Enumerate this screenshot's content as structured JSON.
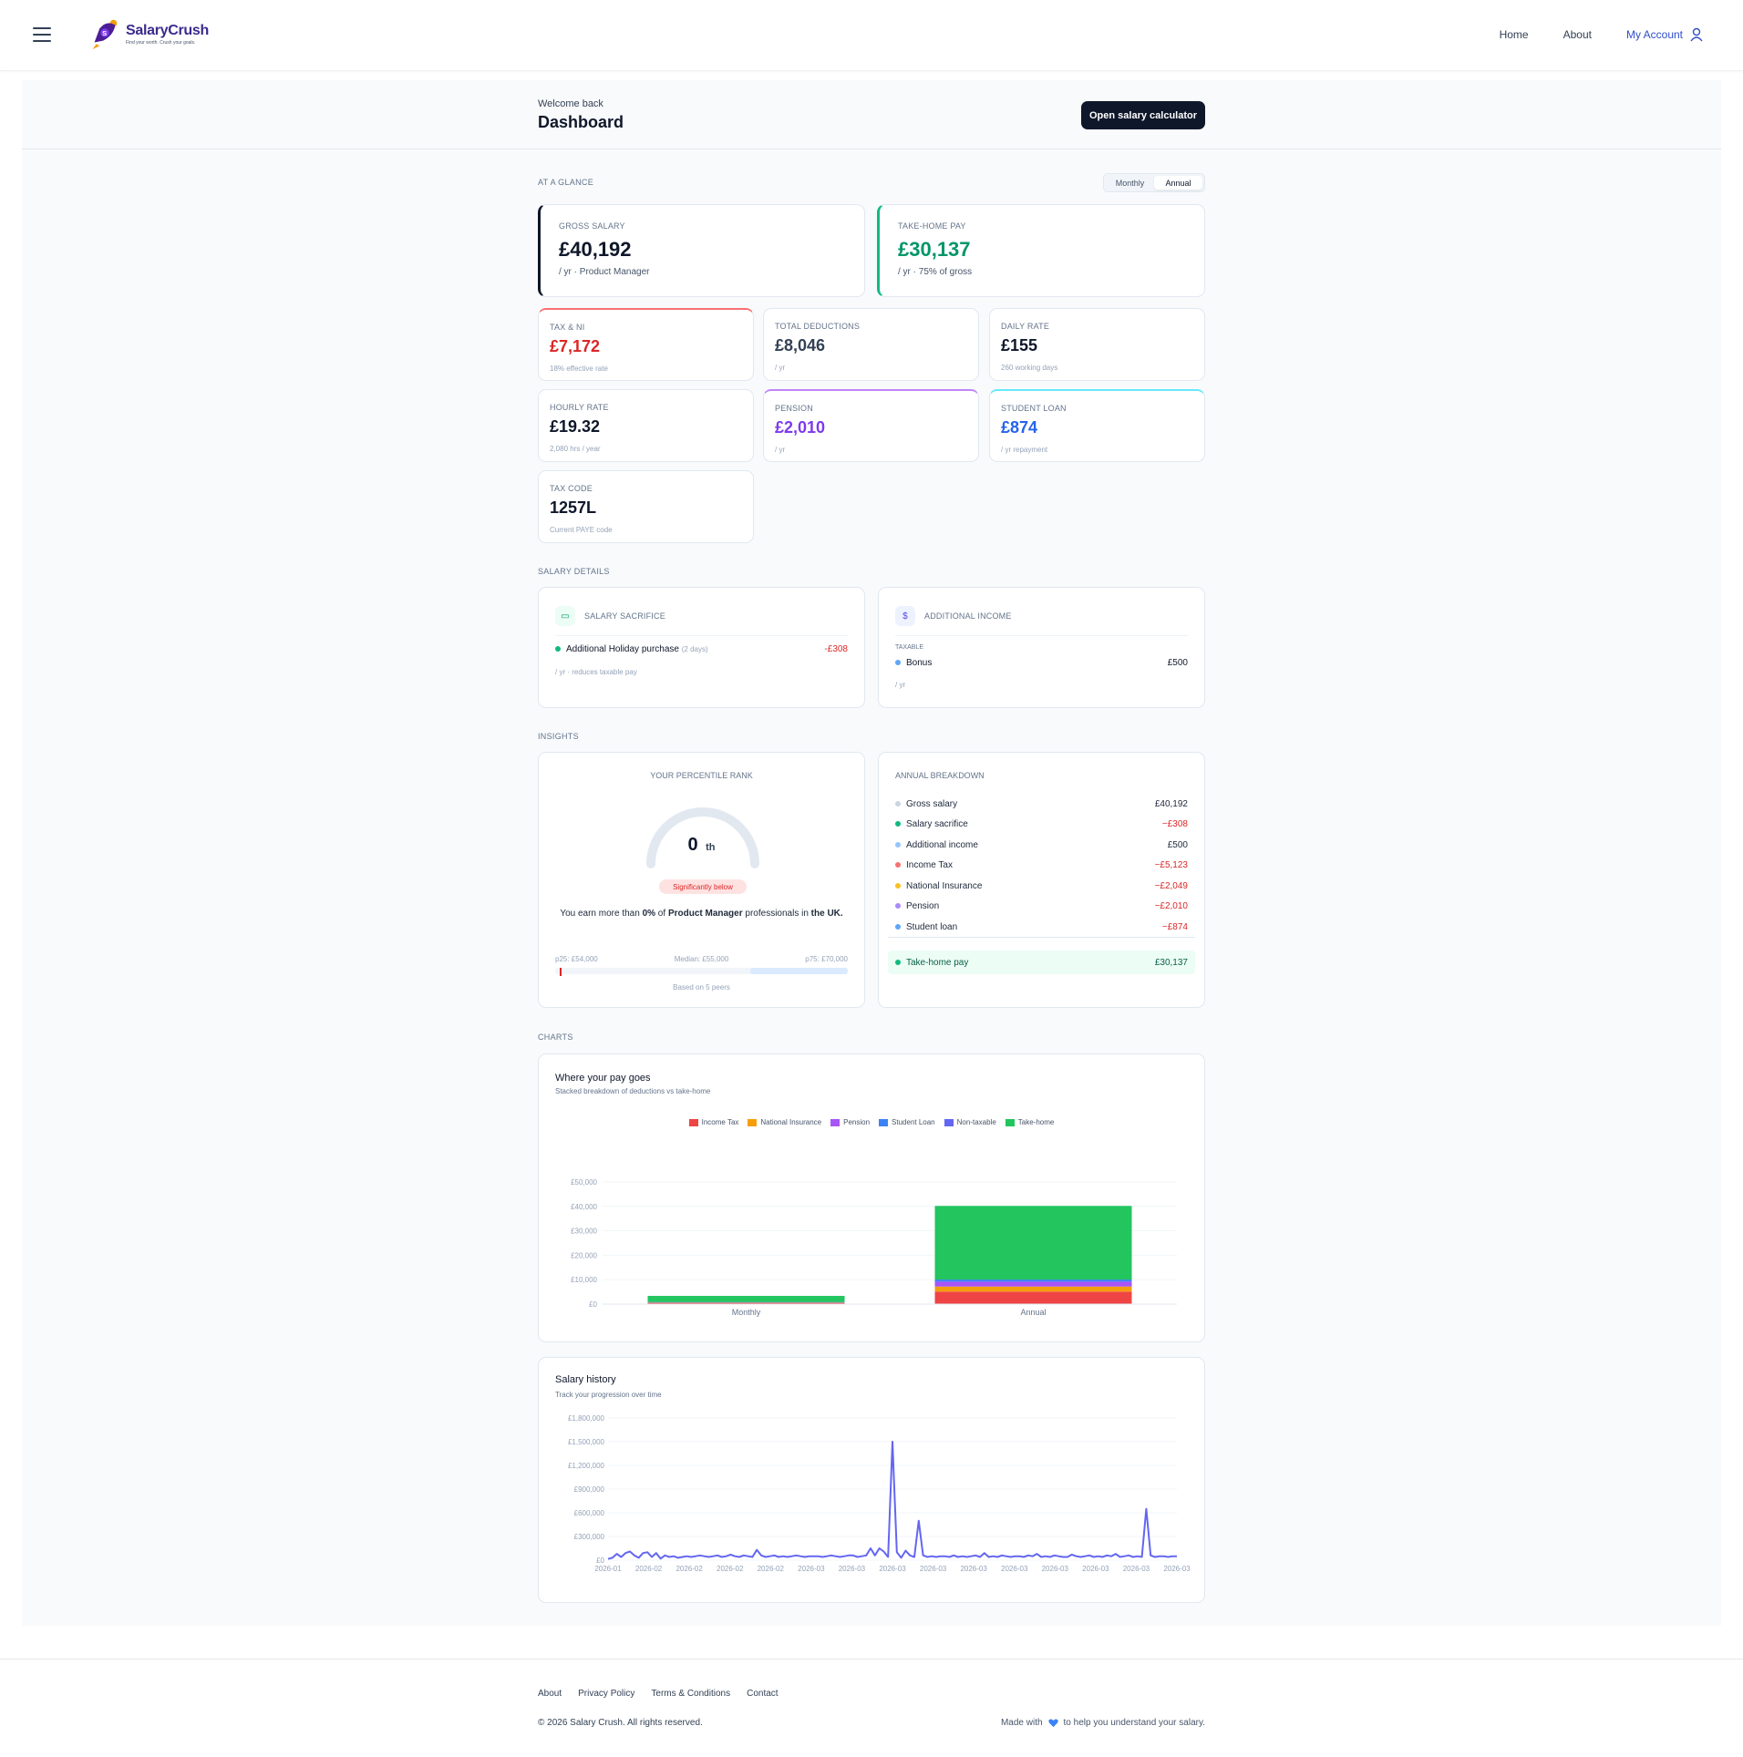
{
  "header": {
    "logo_name": "SalaryCrush",
    "logo_tagline": "Find your worth. Crush your goals.",
    "nav": {
      "home": "Home",
      "about": "About",
      "account": "My Account"
    }
  },
  "page": {
    "welcome": "Welcome back",
    "title": "Dashboard",
    "calc_button": "Open salary calculator"
  },
  "glance": {
    "section": "AT A GLANCE",
    "toggle": {
      "monthly": "Monthly",
      "annual": "Annual",
      "selected": "Annual"
    },
    "gross": {
      "label": "GROSS SALARY",
      "value": "£40,192",
      "sub": "/ yr · Product Manager"
    },
    "takehome": {
      "label": "TAKE-HOME PAY",
      "value": "£30,137",
      "sub": "/ yr · 75% of gross"
    },
    "tax_ni": {
      "label": "TAX & NI",
      "value": "£7,172",
      "sub": "18% effective rate"
    },
    "deductions": {
      "label": "TOTAL DEDUCTIONS",
      "value": "£8,046",
      "sub": "/ yr"
    },
    "daily": {
      "label": "DAILY RATE",
      "value": "£155",
      "sub": "260 working days"
    },
    "hourly": {
      "label": "HOURLY RATE",
      "value": "£19.32",
      "sub": "2,080 hrs / year"
    },
    "pension": {
      "label": "PENSION",
      "value": "£2,010",
      "sub": "/ yr"
    },
    "student_loan": {
      "label": "STUDENT LOAN",
      "value": "£874",
      "sub": "/ yr repayment"
    },
    "tax_code": {
      "label": "TAX CODE",
      "value": "1257L",
      "sub": "Current PAYE code"
    }
  },
  "details": {
    "section": "SALARY DETAILS",
    "sacrifice": {
      "title": "SALARY SACRIFICE",
      "item": "Additional Holiday purchase",
      "item_note": "(2 days)",
      "item_amount": "-£308",
      "footnote": "/ yr · reduces taxable pay"
    },
    "additional": {
      "title": "ADDITIONAL INCOME",
      "group": "TAXABLE",
      "item": "Bonus",
      "item_amount": "£500",
      "footnote": "/ yr"
    }
  },
  "insights": {
    "section": "INSIGHTS",
    "percentile": {
      "title": "YOUR PERCENTILE RANK",
      "value": "0",
      "suffix": "th",
      "badge": "Significantly below",
      "text_a": "You earn more than ",
      "text_pct": "0%",
      "text_b": " of ",
      "text_role": "Product Manager",
      "text_c": " professionals in ",
      "text_loc": "the UK.",
      "p25": "p25: £54,000",
      "median": "Median: £55,000",
      "p75": "p75: £70,000",
      "peers": "Based on 5 peers",
      "gauge_fraction": 0.0
    },
    "breakdown": {
      "title": "ANNUAL BREAKDOWN",
      "rows": [
        {
          "label": "Gross salary",
          "amount": "£40,192",
          "color": "#cbd5e1",
          "neg": false
        },
        {
          "label": "Salary sacrifice",
          "amount": "−£308",
          "color": "#10b981",
          "neg": true
        },
        {
          "label": "Additional income",
          "amount": "£500",
          "color": "#93c5fd",
          "neg": false
        },
        {
          "label": "Income Tax",
          "amount": "−£5,123",
          "color": "#f87171",
          "neg": true
        },
        {
          "label": "National Insurance",
          "amount": "−£2,049",
          "color": "#fbbf24",
          "neg": true
        },
        {
          "label": "Pension",
          "amount": "−£2,010",
          "color": "#a78bfa",
          "neg": true
        },
        {
          "label": "Student loan",
          "amount": "−£874",
          "color": "#60a5fa",
          "neg": true
        }
      ],
      "total_label": "Take-home pay",
      "total_amount": "£30,137"
    }
  },
  "charts_section": "CHARTS",
  "chart_data": [
    {
      "type": "bar",
      "stacked": true,
      "title": "Where your pay goes",
      "subtitle": "Stacked breakdown of deductions vs take-home",
      "categories": [
        "Monthly",
        "Annual"
      ],
      "series": [
        {
          "name": "Income Tax",
          "color": "#ef4444",
          "values": [
            427,
            5123
          ]
        },
        {
          "name": "National Insurance",
          "color": "#f59e0b",
          "values": [
            171,
            2049
          ]
        },
        {
          "name": "Pension",
          "color": "#a855f7",
          "values": [
            168,
            2010
          ]
        },
        {
          "name": "Student Loan",
          "color": "#3b82f6",
          "values": [
            73,
            874
          ]
        },
        {
          "name": "Non-taxable",
          "color": "#6366f1",
          "values": [
            0,
            0
          ]
        },
        {
          "name": "Take-home",
          "color": "#22c55e",
          "values": [
            2511,
            30137
          ]
        }
      ],
      "ylim": [
        0,
        50000
      ],
      "yticks": [
        "£0",
        "£10,000",
        "£20,000",
        "£30,000",
        "£40,000",
        "£50,000"
      ],
      "legend": "top-center",
      "grid": true
    },
    {
      "type": "line",
      "title": "Salary history",
      "subtitle": "Track your progression over time",
      "ylim": [
        0,
        1800000
      ],
      "yticks": [
        "£0",
        "£300,000",
        "£600,000",
        "£900,000",
        "£1,200,000",
        "£1,500,000",
        "£1,800,000"
      ],
      "xticks": [
        "2026-01",
        "2026-02",
        "2026-02",
        "2026-02",
        "2026-02",
        "2026-03",
        "2026-03",
        "2026-03",
        "2026-03",
        "2026-03",
        "2026-03",
        "2026-03",
        "2026-03",
        "2026-03",
        "2026-03"
      ],
      "series": [
        {
          "color": "#6366f1",
          "values": [
            15000,
            30000,
            80000,
            40000,
            90000,
            110000,
            60000,
            30000,
            90000,
            100000,
            40000,
            90000,
            20000,
            60000,
            40000,
            50000,
            30000,
            40000,
            50000,
            40000,
            50000,
            60000,
            50000,
            40000,
            50000,
            60000,
            40000,
            50000,
            70000,
            50000,
            40000,
            60000,
            50000,
            40000,
            130000,
            60000,
            40000,
            50000,
            60000,
            40000,
            50000,
            40000,
            50000,
            60000,
            50000,
            40000,
            50000,
            50000,
            50000,
            40000,
            50000,
            60000,
            50000,
            40000,
            50000,
            60000,
            60000,
            40000,
            50000,
            60000,
            150000,
            60000,
            150000,
            110000,
            40000,
            1500000,
            100000,
            30000,
            120000,
            60000,
            40000,
            500000,
            60000,
            40000,
            50000,
            40000,
            50000,
            50000,
            40000,
            60000,
            40000,
            50000,
            40000,
            50000,
            60000,
            40000,
            90000,
            40000,
            50000,
            40000,
            60000,
            50000,
            40000,
            50000,
            50000,
            40000,
            60000,
            50000,
            80000,
            40000,
            50000,
            40000,
            60000,
            50000,
            40000,
            40000,
            70000,
            50000,
            40000,
            50000,
            60000,
            40000,
            50000,
            40000,
            60000,
            50000,
            80000,
            40000,
            50000,
            60000,
            40000,
            50000,
            40000,
            650000,
            60000,
            40000,
            50000,
            50000,
            40000,
            50000,
            50000
          ]
        }
      ]
    }
  ],
  "footer": {
    "links": [
      "About",
      "Privacy Policy",
      "Terms & Conditions",
      "Contact"
    ],
    "copyright": "© 2026 Salary Crush. All rights reserved.",
    "made_a": "Made with",
    "made_b": "to help you understand your salary."
  }
}
